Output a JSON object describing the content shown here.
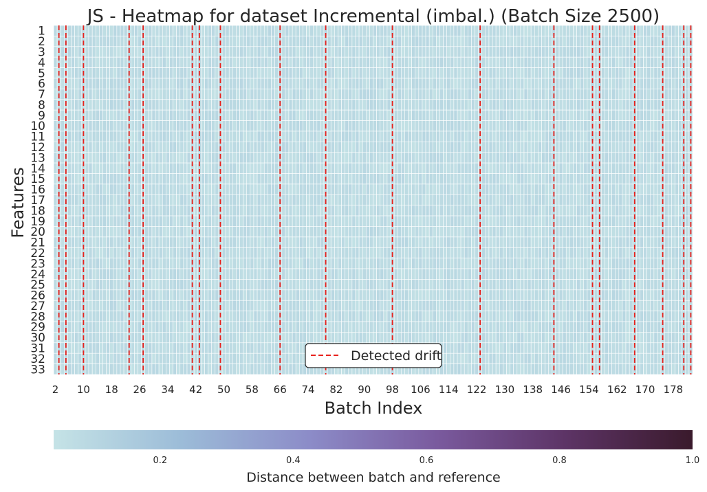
{
  "chart_data": {
    "type": "heatmap",
    "title": "JS - Heatmap for dataset Incremental (imbal.) (Batch Size 2500)",
    "xlabel": "Batch Index",
    "ylabel": "Features",
    "x_start": 2,
    "x_end": 183,
    "x_tick_labels": [
      "2",
      "10",
      "18",
      "26",
      "34",
      "42",
      "50",
      "58",
      "66",
      "74",
      "82",
      "90",
      "98",
      "106",
      "114",
      "122",
      "130",
      "138",
      "146",
      "154",
      "162",
      "170",
      "178"
    ],
    "y_tick_labels": [
      "1",
      "2",
      "3",
      "4",
      "5",
      "6",
      "7",
      "8",
      "9",
      "10",
      "11",
      "12",
      "13",
      "14",
      "15",
      "16",
      "17",
      "18",
      "19",
      "20",
      "21",
      "22",
      "23",
      "24",
      "25",
      "26",
      "27",
      "28",
      "29",
      "30",
      "31",
      "32",
      "33"
    ],
    "cell_value_range": [
      0.05,
      0.1
    ],
    "detected_drift": [
      3,
      5,
      10,
      23,
      27,
      41,
      43,
      49,
      66,
      79,
      98,
      123,
      144,
      155,
      157,
      167,
      175,
      181,
      183
    ],
    "legend": {
      "entry": "Detected drift",
      "placement": "lower-center"
    },
    "colorbar": {
      "label": "Distance between batch and reference",
      "range": [
        0.04,
        1.0
      ],
      "ticks": [
        "0.2",
        "0.4",
        "0.6",
        "0.8",
        "1.0"
      ],
      "orientation": "horizontal",
      "colormap": [
        "#c5e3e6",
        "#9cbcd8",
        "#8c8cc8",
        "#7a5a9e",
        "#5d3466",
        "#3a1a2c"
      ]
    },
    "colors": {
      "drift_line": "#e8211c",
      "cell_border": "#ffffff"
    }
  }
}
